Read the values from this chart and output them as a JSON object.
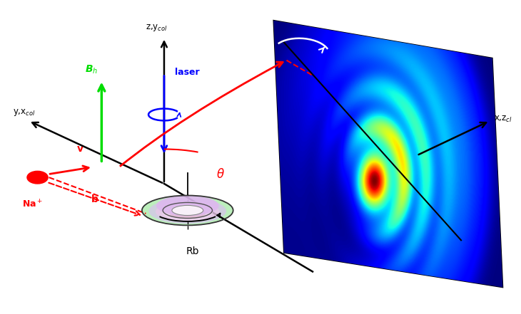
{
  "fig_width": 7.3,
  "fig_height": 4.41,
  "dpi": 100,
  "colors": {
    "background": "white",
    "axes": "black",
    "green_arrow": "#00dd00",
    "blue_laser": "#0000ff",
    "red": "#ff0000",
    "plane_dark_blue": "#000080"
  },
  "labels": {
    "z_ycol": "z,y$_{col}$",
    "y_xcol": "y,x$_{col}$",
    "x_zcol": "x,z$_{cl}$",
    "Bh": "B$_h$",
    "laser": "laser",
    "theta": "$\\theta$",
    "phi": "$\\varphi$",
    "Na": "Na$^+$",
    "v": "v",
    "b": "b",
    "Rb": "Rb"
  }
}
